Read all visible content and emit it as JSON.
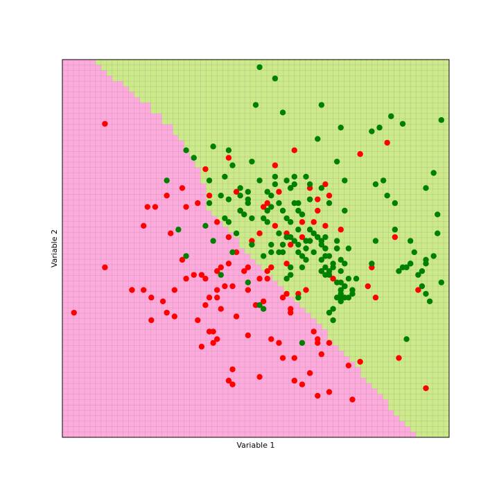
{
  "chart_data": {
    "type": "scatter",
    "title": "",
    "xlabel": "Variable 1",
    "ylabel": "Variable 2",
    "xlim": [
      0,
      1
    ],
    "ylim": [
      0,
      1
    ],
    "ticks_visible": false,
    "grid": true,
    "background": {
      "description": "classifier decision regions on a 70x70 grid",
      "grid_cells": 70,
      "regions": [
        {
          "class": "red",
          "color": "#ffaadd"
        },
        {
          "class": "green",
          "color": "#ccea8a"
        }
      ],
      "boundary_x_at_y": [
        [
          1.0,
          0.07
        ],
        [
          0.9,
          0.2
        ],
        [
          0.8,
          0.3
        ],
        [
          0.7,
          0.36
        ],
        [
          0.6,
          0.38
        ],
        [
          0.5,
          0.47
        ],
        [
          0.4,
          0.57
        ],
        [
          0.3,
          0.66
        ],
        [
          0.2,
          0.75
        ],
        [
          0.1,
          0.83
        ],
        [
          0.0,
          0.92
        ]
      ]
    },
    "series": [
      {
        "color": "#ff0000",
        "points": [
          [
            0.03,
            0.33
          ],
          [
            0.11,
            0.83
          ],
          [
            0.11,
            0.45
          ],
          [
            0.18,
            0.39
          ],
          [
            0.18,
            0.39
          ],
          [
            0.21,
            0.56
          ],
          [
            0.21,
            0.39
          ],
          [
            0.22,
            0.61
          ],
          [
            0.23,
            0.37
          ],
          [
            0.23,
            0.31
          ],
          [
            0.24,
            0.61
          ],
          [
            0.26,
            0.36
          ],
          [
            0.27,
            0.64
          ],
          [
            0.27,
            0.33
          ],
          [
            0.28,
            0.54
          ],
          [
            0.29,
            0.32
          ],
          [
            0.29,
            0.39
          ],
          [
            0.31,
            0.66
          ],
          [
            0.31,
            0.47
          ],
          [
            0.32,
            0.42
          ],
          [
            0.32,
            0.61
          ],
          [
            0.34,
            0.43
          ],
          [
            0.35,
            0.62
          ],
          [
            0.35,
            0.31
          ],
          [
            0.36,
            0.24
          ],
          [
            0.37,
            0.42
          ],
          [
            0.37,
            0.35
          ],
          [
            0.38,
            0.64
          ],
          [
            0.39,
            0.25
          ],
          [
            0.36,
            0.43
          ],
          [
            0.37,
            0.71
          ],
          [
            0.38,
            0.28
          ],
          [
            0.38,
            0.37
          ],
          [
            0.4,
            0.44
          ],
          [
            0.39,
            0.28
          ],
          [
            0.4,
            0.57
          ],
          [
            0.4,
            0.26
          ],
          [
            0.4,
            0.39
          ],
          [
            0.4,
            0.37
          ],
          [
            0.41,
            0.34
          ],
          [
            0.41,
            0.45
          ],
          [
            0.42,
            0.4
          ],
          [
            0.43,
            0.53
          ],
          [
            0.43,
            0.46
          ],
          [
            0.43,
            0.15
          ],
          [
            0.44,
            0.14
          ],
          [
            0.43,
            0.74
          ],
          [
            0.44,
            0.4
          ],
          [
            0.44,
            0.18
          ],
          [
            0.45,
            0.49
          ],
          [
            0.45,
            0.32
          ],
          [
            0.45,
            0.65
          ],
          [
            0.46,
            0.6
          ],
          [
            0.47,
            0.44
          ],
          [
            0.48,
            0.39
          ],
          [
            0.48,
            0.45
          ],
          [
            0.48,
            0.27
          ],
          [
            0.49,
            0.52
          ],
          [
            0.5,
            0.35
          ],
          [
            0.51,
            0.16
          ],
          [
            0.51,
            0.54
          ],
          [
            0.51,
            0.42
          ],
          [
            0.52,
            0.61
          ],
          [
            0.52,
            0.36
          ],
          [
            0.53,
            0.44
          ],
          [
            0.53,
            0.62
          ],
          [
            0.53,
            0.42
          ],
          [
            0.54,
            0.26
          ],
          [
            0.54,
            0.45
          ],
          [
            0.55,
            0.56
          ],
          [
            0.55,
            0.72
          ],
          [
            0.56,
            0.65
          ],
          [
            0.57,
            0.51
          ],
          [
            0.56,
            0.25
          ],
          [
            0.57,
            0.21
          ],
          [
            0.57,
            0.37
          ],
          [
            0.58,
            0.38
          ],
          [
            0.58,
            0.54
          ],
          [
            0.58,
            0.46
          ],
          [
            0.59,
            0.34
          ],
          [
            0.59,
            0.51
          ],
          [
            0.59,
            0.33
          ],
          [
            0.6,
            0.21
          ],
          [
            0.6,
            0.15
          ],
          [
            0.6,
            0.76
          ],
          [
            0.61,
            0.38
          ],
          [
            0.62,
            0.53
          ],
          [
            0.62,
            0.57
          ],
          [
            0.62,
            0.14
          ],
          [
            0.63,
            0.39
          ],
          [
            0.64,
            0.66
          ],
          [
            0.64,
            0.52
          ],
          [
            0.64,
            0.17
          ],
          [
            0.65,
            0.57
          ],
          [
            0.65,
            0.28
          ],
          [
            0.66,
            0.25
          ],
          [
            0.66,
            0.11
          ],
          [
            0.66,
            0.6
          ],
          [
            0.66,
            0.26
          ],
          [
            0.67,
            0.22
          ],
          [
            0.67,
            0.44
          ],
          [
            0.68,
            0.67
          ],
          [
            0.68,
            0.56
          ],
          [
            0.66,
            0.63
          ],
          [
            0.69,
            0.12
          ],
          [
            0.69,
            0.64
          ],
          [
            0.69,
            0.25
          ],
          [
            0.7,
            0.42
          ],
          [
            0.72,
            0.55
          ],
          [
            0.74,
            0.19
          ],
          [
            0.75,
            0.1
          ],
          [
            0.77,
            0.2
          ],
          [
            0.77,
            0.75
          ],
          [
            0.79,
            0.4
          ],
          [
            0.8,
            0.45
          ],
          [
            0.81,
            0.37
          ],
          [
            0.84,
            0.78
          ],
          [
            0.86,
            0.53
          ],
          [
            0.87,
            0.21
          ],
          [
            0.92,
            0.39
          ],
          [
            0.94,
            0.13
          ]
        ]
      },
      {
        "color": "#008000",
        "points": [
          [
            0.27,
            0.68
          ],
          [
            0.32,
            0.48
          ],
          [
            0.3,
            0.55
          ],
          [
            0.32,
            0.76
          ],
          [
            0.34,
            0.74
          ],
          [
            0.37,
            0.56
          ],
          [
            0.38,
            0.68
          ],
          [
            0.39,
            0.77
          ],
          [
            0.39,
            0.52
          ],
          [
            0.41,
            0.43
          ],
          [
            0.42,
            0.69
          ],
          [
            0.42,
            0.58
          ],
          [
            0.43,
            0.63
          ],
          [
            0.43,
            0.76
          ],
          [
            0.44,
            0.49
          ],
          [
            0.44,
            0.72
          ],
          [
            0.45,
            0.54
          ],
          [
            0.46,
            0.6
          ],
          [
            0.46,
            0.66
          ],
          [
            0.46,
            0.64
          ],
          [
            0.47,
            0.59
          ],
          [
            0.48,
            0.65
          ],
          [
            0.48,
            0.62
          ],
          [
            0.49,
            0.58
          ],
          [
            0.49,
            0.51
          ],
          [
            0.49,
            0.73
          ],
          [
            0.5,
            0.88
          ],
          [
            0.51,
            0.68
          ],
          [
            0.51,
            0.98
          ],
          [
            0.52,
            0.34
          ],
          [
            0.51,
            0.35
          ],
          [
            0.52,
            0.48
          ],
          [
            0.53,
            0.6
          ],
          [
            0.53,
            0.65
          ],
          [
            0.54,
            0.61
          ],
          [
            0.54,
            0.51
          ],
          [
            0.55,
            0.95
          ],
          [
            0.55,
            0.69
          ],
          [
            0.56,
            0.62
          ],
          [
            0.56,
            0.54
          ],
          [
            0.57,
            0.51
          ],
          [
            0.57,
            0.49
          ],
          [
            0.57,
            0.86
          ],
          [
            0.58,
            0.42
          ],
          [
            0.58,
            0.68
          ],
          [
            0.58,
            0.53
          ],
          [
            0.59,
            0.66
          ],
          [
            0.59,
            0.66
          ],
          [
            0.59,
            0.45
          ],
          [
            0.59,
            0.43
          ],
          [
            0.6,
            0.69
          ],
          [
            0.59,
            0.57
          ],
          [
            0.6,
            0.67
          ],
          [
            0.6,
            0.62
          ],
          [
            0.61,
            0.6
          ],
          [
            0.61,
            0.51
          ],
          [
            0.61,
            0.37
          ],
          [
            0.62,
            0.59
          ],
          [
            0.62,
            0.25
          ],
          [
            0.62,
            0.48
          ],
          [
            0.63,
            0.47
          ],
          [
            0.63,
            0.5
          ],
          [
            0.63,
            0.69
          ],
          [
            0.64,
            0.63
          ],
          [
            0.64,
            0.52
          ],
          [
            0.65,
            0.54
          ],
          [
            0.65,
            0.49
          ],
          [
            0.66,
            0.53
          ],
          [
            0.66,
            0.53
          ],
          [
            0.67,
            0.52
          ],
          [
            0.68,
            0.5
          ],
          [
            0.69,
            0.62
          ],
          [
            0.69,
            0.43
          ],
          [
            0.71,
            0.73
          ],
          [
            0.68,
            0.45
          ],
          [
            0.66,
            0.79
          ],
          [
            0.67,
            0.88
          ],
          [
            0.71,
            0.5
          ],
          [
            0.71,
            0.41
          ],
          [
            0.71,
            0.52
          ],
          [
            0.7,
            0.46
          ],
          [
            0.72,
            0.82
          ],
          [
            0.72,
            0.44
          ],
          [
            0.73,
            0.4
          ],
          [
            0.72,
            0.37
          ],
          [
            0.73,
            0.6
          ],
          [
            0.74,
            0.42
          ],
          [
            0.74,
            0.37
          ],
          [
            0.74,
            0.5
          ],
          [
            0.72,
            0.39
          ],
          [
            0.67,
            0.51
          ],
          [
            0.67,
            0.47
          ],
          [
            0.68,
            0.53
          ],
          [
            0.62,
            0.59
          ],
          [
            0.72,
            0.47
          ],
          [
            0.75,
            0.39
          ],
          [
            0.75,
            0.38
          ],
          [
            0.76,
            0.42
          ],
          [
            0.73,
            0.46
          ],
          [
            0.73,
            0.4
          ],
          [
            0.68,
            0.43
          ],
          [
            0.67,
            0.66
          ],
          [
            0.68,
            0.5
          ],
          [
            0.62,
            0.45
          ],
          [
            0.63,
            0.52
          ],
          [
            0.64,
            0.55
          ],
          [
            0.71,
            0.5
          ],
          [
            0.72,
            0.41
          ],
          [
            0.72,
            0.36
          ],
          [
            0.73,
            0.37
          ],
          [
            0.67,
            0.44
          ],
          [
            0.68,
            0.48
          ],
          [
            0.69,
            0.44
          ],
          [
            0.7,
            0.45
          ],
          [
            0.69,
            0.48
          ],
          [
            0.71,
            0.37
          ],
          [
            0.72,
            0.38
          ],
          [
            0.81,
            0.67
          ],
          [
            0.83,
            0.68
          ],
          [
            0.88,
            0.83
          ],
          [
            0.73,
            0.68
          ],
          [
            0.8,
            0.81
          ],
          [
            0.8,
            0.46
          ],
          [
            0.81,
            0.52
          ],
          [
            0.82,
            0.82
          ],
          [
            0.84,
            0.64
          ],
          [
            0.85,
            0.85
          ],
          [
            0.86,
            0.55
          ],
          [
            0.86,
            0.62
          ],
          [
            0.87,
            0.44
          ],
          [
            0.88,
            0.45
          ],
          [
            0.89,
            0.45
          ],
          [
            0.9,
            0.52
          ],
          [
            0.9,
            0.46
          ],
          [
            0.9,
            0.46
          ],
          [
            0.91,
            0.49
          ],
          [
            0.92,
            0.43
          ],
          [
            0.93,
            0.4
          ],
          [
            0.93,
            0.44
          ],
          [
            0.94,
            0.47
          ],
          [
            0.94,
            0.46
          ],
          [
            0.94,
            0.38
          ],
          [
            0.95,
            0.36
          ],
          [
            0.96,
            0.48
          ],
          [
            0.97,
            0.54
          ],
          [
            0.98,
            0.41
          ],
          [
            0.97,
            0.59
          ],
          [
            0.94,
            0.66
          ],
          [
            0.96,
            0.7
          ],
          [
            0.98,
            0.84
          ],
          [
            0.89,
            0.26
          ],
          [
            0.43,
            0.57
          ],
          [
            0.48,
            0.41
          ],
          [
            0.48,
            0.63
          ],
          [
            0.55,
            0.67
          ],
          [
            0.54,
            0.64
          ],
          [
            0.58,
            0.58
          ],
          [
            0.57,
            0.6
          ],
          [
            0.61,
            0.62
          ],
          [
            0.61,
            0.55
          ],
          [
            0.56,
            0.49
          ],
          [
            0.59,
            0.53
          ],
          [
            0.6,
            0.52
          ],
          [
            0.64,
            0.67
          ],
          [
            0.53,
            0.57
          ],
          [
            0.52,
            0.58
          ],
          [
            0.41,
            0.64
          ],
          [
            0.38,
            0.62
          ],
          [
            0.54,
            0.49
          ],
          [
            0.61,
            0.49
          ],
          [
            0.7,
            0.31
          ],
          [
            0.69,
            0.33
          ],
          [
            0.7,
            0.34
          ]
        ]
      }
    ]
  }
}
